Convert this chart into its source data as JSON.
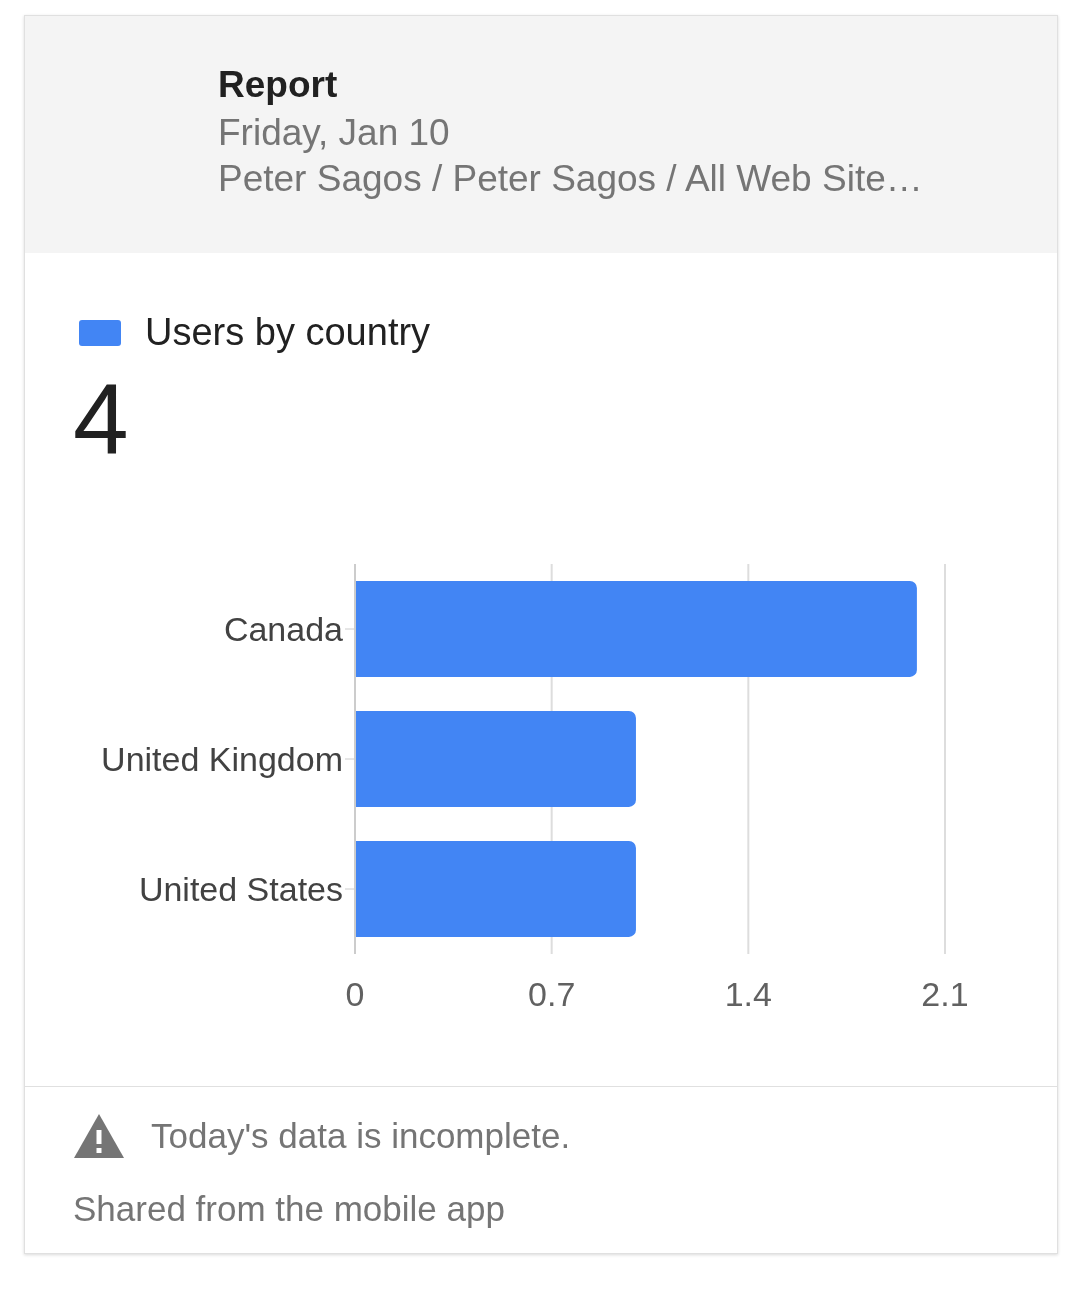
{
  "chart_data": {
    "type": "bar",
    "orientation": "horizontal",
    "title": "Report",
    "subtitle": "Friday, Jan 10",
    "annotations": [
      "Peter Sagos / Peter Sagos / All Web Site…",
      "4",
      "Today's data is incomplete.",
      "Shared from the mobile app"
    ],
    "categories": [
      "Canada",
      "United Kingdom",
      "United States"
    ],
    "series": [
      {
        "name": "Users by country",
        "color": "#4285f4",
        "values": [
          2,
          1,
          1
        ]
      }
    ],
    "xlim": [
      0,
      2.1
    ],
    "xticks": [
      0,
      0.7,
      1.4,
      2.1
    ],
    "grid": "x",
    "legend": "top left"
  }
}
